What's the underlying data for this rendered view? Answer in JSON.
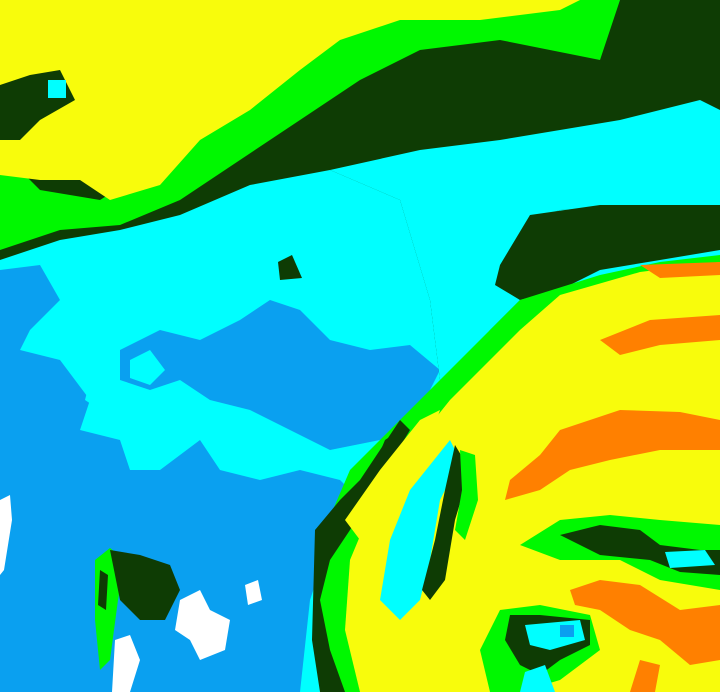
{
  "image": {
    "kind": "false-color satellite cloud imagery",
    "palette": {
      "yellow": "#f8fc0c",
      "green": "#00f800",
      "dark_green": "#0e3c04",
      "cyan": "#00ffff",
      "blue": "#0aa0f0",
      "orange": "#ff8000",
      "white": "#ffffff"
    }
  }
}
